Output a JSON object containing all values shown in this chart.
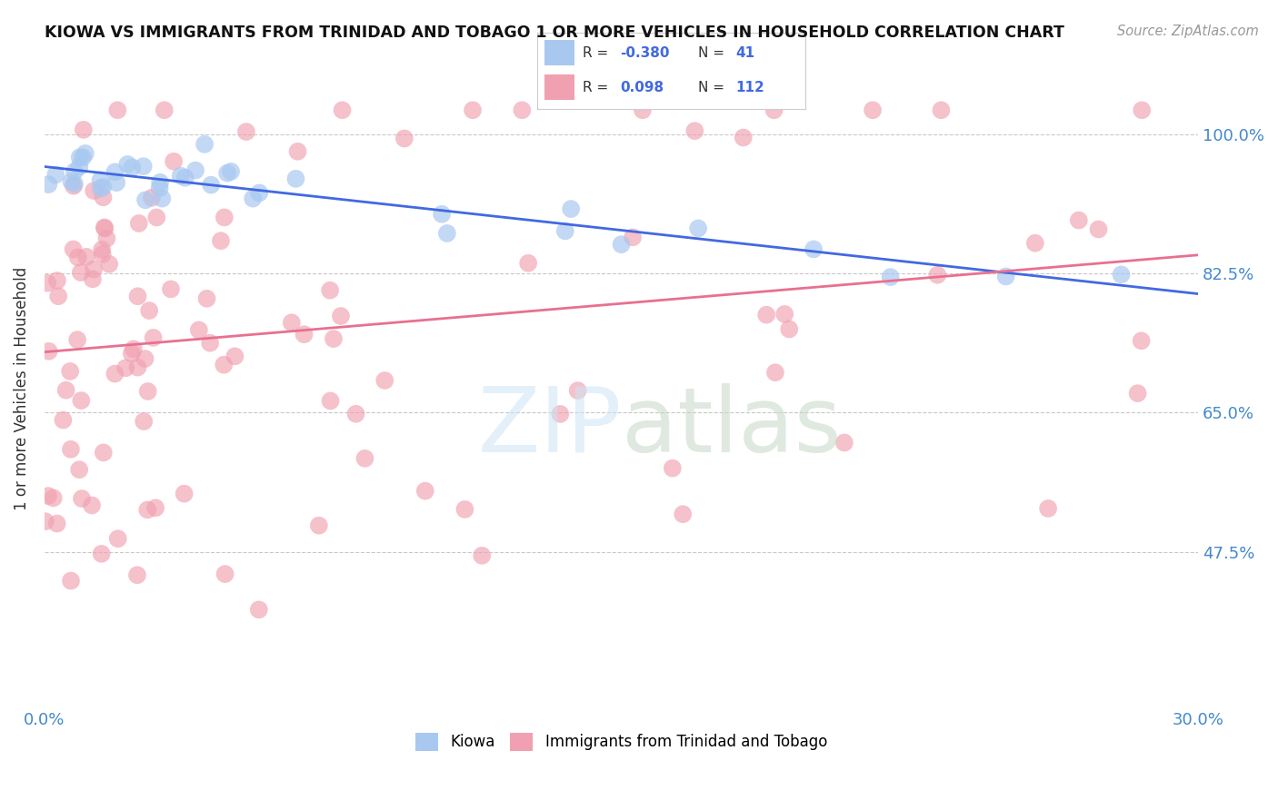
{
  "title": "KIOWA VS IMMIGRANTS FROM TRINIDAD AND TOBAGO 1 OR MORE VEHICLES IN HOUSEHOLD CORRELATION CHART",
  "source": "Source: ZipAtlas.com",
  "ylabel": "1 or more Vehicles in Household",
  "xlim": [
    0.0,
    30.0
  ],
  "ylim": [
    28.0,
    108.0
  ],
  "legend_R1": "-0.380",
  "legend_N1": "41",
  "legend_R2": "0.098",
  "legend_N2": "112",
  "kiowa_color": "#a8c8f0",
  "trinidad_color": "#f0a0b0",
  "line_blue": "#4169e1",
  "line_pink": "#e87090",
  "background_color": "#ffffff"
}
